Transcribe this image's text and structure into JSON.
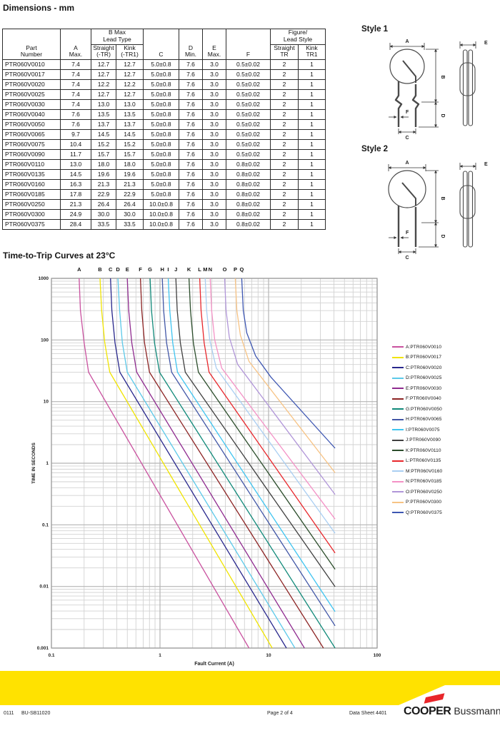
{
  "sections": {
    "dimensions_title": "Dimensions - mm",
    "curves_title": "Time-to-Trip Curves at 23°C"
  },
  "table": {
    "group_headers": {
      "b_max": [
        "B Max",
        "Lead Type"
      ],
      "figure": [
        "Figure/",
        "Lead Style"
      ]
    },
    "col_headers": {
      "part": [
        "Part",
        "Number"
      ],
      "a": [
        "A",
        "Max."
      ],
      "straight_tr": [
        "Straight",
        "(-TR)"
      ],
      "kink_tr1": [
        "Kink",
        "(-TR1)"
      ],
      "c": "C",
      "d": [
        "D",
        "Min."
      ],
      "e": [
        "E",
        "Max."
      ],
      "f": "F",
      "fig_straight": [
        "Straight",
        "TR"
      ],
      "fig_kink": [
        "Kink",
        "TR1"
      ]
    },
    "rows": [
      [
        "PTR060V0010",
        "7.4",
        "12.7",
        "12.7",
        "5.0±0.8",
        "7.6",
        "3.0",
        "0.5±0.02",
        "2",
        "1"
      ],
      [
        "PTR060V0017",
        "7.4",
        "12.7",
        "12.7",
        "5.0±0.8",
        "7.6",
        "3.0",
        "0.5±0.02",
        "2",
        "1"
      ],
      [
        "PTR060V0020",
        "7.4",
        "12.2",
        "12.2",
        "5.0±0.8",
        "7.6",
        "3.0",
        "0.5±0.02",
        "2",
        "1"
      ],
      [
        "PTR060V0025",
        "7.4",
        "12.7",
        "12.7",
        "5.0±0.8",
        "7.6",
        "3.0",
        "0.5±0.02",
        "2",
        "1"
      ],
      [
        "PTR060V0030",
        "7.4",
        "13.0",
        "13.0",
        "5.0±0.8",
        "7.6",
        "3.0",
        "0.5±0.02",
        "2",
        "1"
      ],
      [
        "PTR060V0040",
        "7.6",
        "13.5",
        "13.5",
        "5.0±0.8",
        "7.6",
        "3.0",
        "0.5±0.02",
        "2",
        "1"
      ],
      [
        "PTR060V0050",
        "7.6",
        "13.7",
        "13.7",
        "5.0±0.8",
        "7.6",
        "3.0",
        "0.5±0.02",
        "2",
        "1"
      ],
      [
        "PTR060V0065",
        "9.7",
        "14.5",
        "14.5",
        "5.0±0.8",
        "7.6",
        "3.0",
        "0.5±0.02",
        "2",
        "1"
      ],
      [
        "PTR060V0075",
        "10.4",
        "15.2",
        "15.2",
        "5.0±0.8",
        "7.6",
        "3.0",
        "0.5±0.02",
        "2",
        "1"
      ],
      [
        "PTR060V0090",
        "11.7",
        "15.7",
        "15.7",
        "5.0±0.8",
        "7.6",
        "3.0",
        "0.5±0.02",
        "2",
        "1"
      ],
      [
        "PTR060V0110",
        "13.0",
        "18.0",
        "18.0",
        "5.0±0.8",
        "7.6",
        "3.0",
        "0.8±0.02",
        "2",
        "1"
      ],
      [
        "PTR060V0135",
        "14.5",
        "19.6",
        "19.6",
        "5.0±0.8",
        "7.6",
        "3.0",
        "0.8±0.02",
        "2",
        "1"
      ],
      [
        "PTR060V0160",
        "16.3",
        "21.3",
        "21.3",
        "5.0±0.8",
        "7.6",
        "3.0",
        "0.8±0.02",
        "2",
        "1"
      ],
      [
        "PTR060V0185",
        "17.8",
        "22.9",
        "22.9",
        "5.0±0.8",
        "7.6",
        "3.0",
        "0.8±0.02",
        "2",
        "1"
      ],
      [
        "PTR060V0250",
        "21.3",
        "26.4",
        "26.4",
        "10.0±0.8",
        "7.6",
        "3.0",
        "0.8±0.02",
        "2",
        "1"
      ],
      [
        "PTR060V0300",
        "24.9",
        "30.0",
        "30.0",
        "10.0±0.8",
        "7.6",
        "3.0",
        "0.8±0.02",
        "2",
        "1"
      ],
      [
        "PTR060V0375",
        "28.4",
        "33.5",
        "33.5",
        "10.0±0.8",
        "7.6",
        "3.0",
        "0.8±0.02",
        "2",
        "1"
      ]
    ]
  },
  "diagrams": {
    "style1_title": "Style 1",
    "style2_title": "Style 2",
    "labels": {
      "A": "A",
      "B": "B",
      "C": "C",
      "D": "D",
      "E": "E",
      "F": "F"
    }
  },
  "chart_data": {
    "type": "line",
    "title": "Time-to-Trip Curves at 23°C",
    "xlabel": "Fault Current (A)",
    "ylabel": "TIME IN SECONDS",
    "xscale": "log",
    "yscale": "log",
    "xlim": [
      0.1,
      100
    ],
    "ylim": [
      0.001,
      1000
    ],
    "x_ticks": [
      "0.1",
      "1",
      "10",
      "100"
    ],
    "y_ticks": [
      "1000",
      "100",
      "10",
      "1",
      "0.1",
      "0.01",
      "0.001"
    ],
    "grid": true,
    "legend_position": "right",
    "series": [
      {
        "letter": "A",
        "label": "A:PTR060V0010",
        "color": "#c9519f",
        "points": [
          [
            0.18,
            1000
          ],
          [
            0.185,
            300
          ],
          [
            0.2,
            90
          ],
          [
            0.22,
            30
          ],
          [
            6.6,
            0.001
          ]
        ]
      },
      {
        "letter": "B",
        "label": "B:PTR060V0017",
        "color": "#f0e400",
        "points": [
          [
            0.28,
            1000
          ],
          [
            0.29,
            300
          ],
          [
            0.31,
            90
          ],
          [
            0.345,
            30
          ],
          [
            10.8,
            0.001
          ]
        ]
      },
      {
        "letter": "C",
        "label": "C:PTR060V0020",
        "color": "#28278c",
        "points": [
          [
            0.35,
            1000
          ],
          [
            0.36,
            300
          ],
          [
            0.385,
            90
          ],
          [
            0.427,
            30
          ],
          [
            14.6,
            0.001
          ]
        ]
      },
      {
        "letter": "D",
        "label": "D:PTR060V0025",
        "color": "#5bc9e9",
        "points": [
          [
            0.41,
            1000
          ],
          [
            0.425,
            300
          ],
          [
            0.45,
            90
          ],
          [
            0.5,
            30
          ],
          [
            17.5,
            0.001
          ]
        ]
      },
      {
        "letter": "E",
        "label": "E:PTR060V0030",
        "color": "#8f2b8f",
        "points": [
          [
            0.5,
            1000
          ],
          [
            0.515,
            300
          ],
          [
            0.55,
            90
          ],
          [
            0.61,
            30
          ],
          [
            21.4,
            0.001
          ]
        ]
      },
      {
        "letter": "F",
        "label": "F:PTR060V0040",
        "color": "#8c2323",
        "points": [
          [
            0.66,
            1000
          ],
          [
            0.68,
            300
          ],
          [
            0.72,
            90
          ],
          [
            0.8,
            30
          ],
          [
            32,
            0.001
          ]
        ]
      },
      {
        "letter": "G",
        "label": "G:PTR060V0050",
        "color": "#108979",
        "points": [
          [
            0.81,
            1000
          ],
          [
            0.835,
            300
          ],
          [
            0.89,
            90
          ],
          [
            0.99,
            30
          ],
          [
            41,
            0.001
          ]
        ]
      },
      {
        "letter": "H",
        "label": "H:PTR060V0065",
        "color": "#4156a6",
        "points": [
          [
            1.05,
            1000
          ],
          [
            1.08,
            300
          ],
          [
            1.15,
            90
          ],
          [
            1.28,
            30
          ],
          [
            41,
            0.0023
          ]
        ]
      },
      {
        "letter": "I",
        "label": "I:PTR060V0075",
        "color": "#3fc4f0",
        "points": [
          [
            1.19,
            1000
          ],
          [
            1.23,
            300
          ],
          [
            1.31,
            90
          ],
          [
            1.45,
            30
          ],
          [
            41,
            0.0039
          ]
        ]
      },
      {
        "letter": "J",
        "label": "J:PTR060V0090",
        "color": "#404040",
        "points": [
          [
            1.4,
            1000
          ],
          [
            1.44,
            300
          ],
          [
            1.54,
            90
          ],
          [
            1.71,
            30
          ],
          [
            41,
            0.0099
          ]
        ]
      },
      {
        "letter": "K",
        "label": "K:PTR060V0110",
        "color": "#2b4d2b",
        "points": [
          [
            1.85,
            1000
          ],
          [
            1.91,
            300
          ],
          [
            2.03,
            90
          ],
          [
            2.26,
            30
          ],
          [
            41,
            0.019
          ]
        ]
      },
      {
        "letter": "L",
        "label": "L:PTR060V0135",
        "color": "#e8262b",
        "points": [
          [
            2.32,
            1000
          ],
          [
            2.39,
            300
          ],
          [
            2.55,
            90
          ],
          [
            2.83,
            30
          ],
          [
            41,
            0.035
          ]
        ]
      },
      {
        "letter": "M",
        "label": "M:PTR060V0160",
        "color": "#a9cef2",
        "points": [
          [
            2.61,
            1000
          ],
          [
            2.69,
            300
          ],
          [
            2.87,
            100
          ],
          [
            3.3,
            35
          ],
          [
            41,
            0.073
          ]
        ]
      },
      {
        "letter": "N",
        "label": "N:PTR060V0185",
        "color": "#f492c6",
        "points": [
          [
            2.9,
            1000
          ],
          [
            2.99,
            300
          ],
          [
            3.19,
            100
          ],
          [
            3.7,
            35
          ],
          [
            41,
            0.124
          ]
        ]
      },
      {
        "letter": "O",
        "label": "O:PTR060V0250",
        "color": "#b095d8",
        "points": [
          [
            3.94,
            1000
          ],
          [
            4.06,
            300
          ],
          [
            4.35,
            110
          ],
          [
            5.2,
            40
          ],
          [
            41,
            0.31
          ]
        ]
      },
      {
        "letter": "P",
        "label": "P:PTR060V0300",
        "color": "#f7c384",
        "points": [
          [
            4.94,
            1000
          ],
          [
            5.1,
            300
          ],
          [
            5.5,
            120
          ],
          [
            6.6,
            45
          ],
          [
            41,
            0.7
          ]
        ]
      },
      {
        "letter": "Q",
        "label": "Q:PTR060V0375",
        "color": "#3d56b2",
        "points": [
          [
            5.66,
            1000
          ],
          [
            5.85,
            300
          ],
          [
            6.3,
            130
          ],
          [
            7.6,
            55
          ],
          [
            10.5,
            25
          ],
          [
            41,
            1.75
          ]
        ]
      }
    ]
  },
  "footer": {
    "code_left": "0111",
    "doc_number": "BU-SB11020",
    "page": "Page 2 of 4",
    "datasheet": "Data Sheet 4401",
    "brand_primary": "COOPER",
    "brand_secondary": "Bussmann",
    "band_color": "#ffe200",
    "flag_color": "#e8262a"
  }
}
